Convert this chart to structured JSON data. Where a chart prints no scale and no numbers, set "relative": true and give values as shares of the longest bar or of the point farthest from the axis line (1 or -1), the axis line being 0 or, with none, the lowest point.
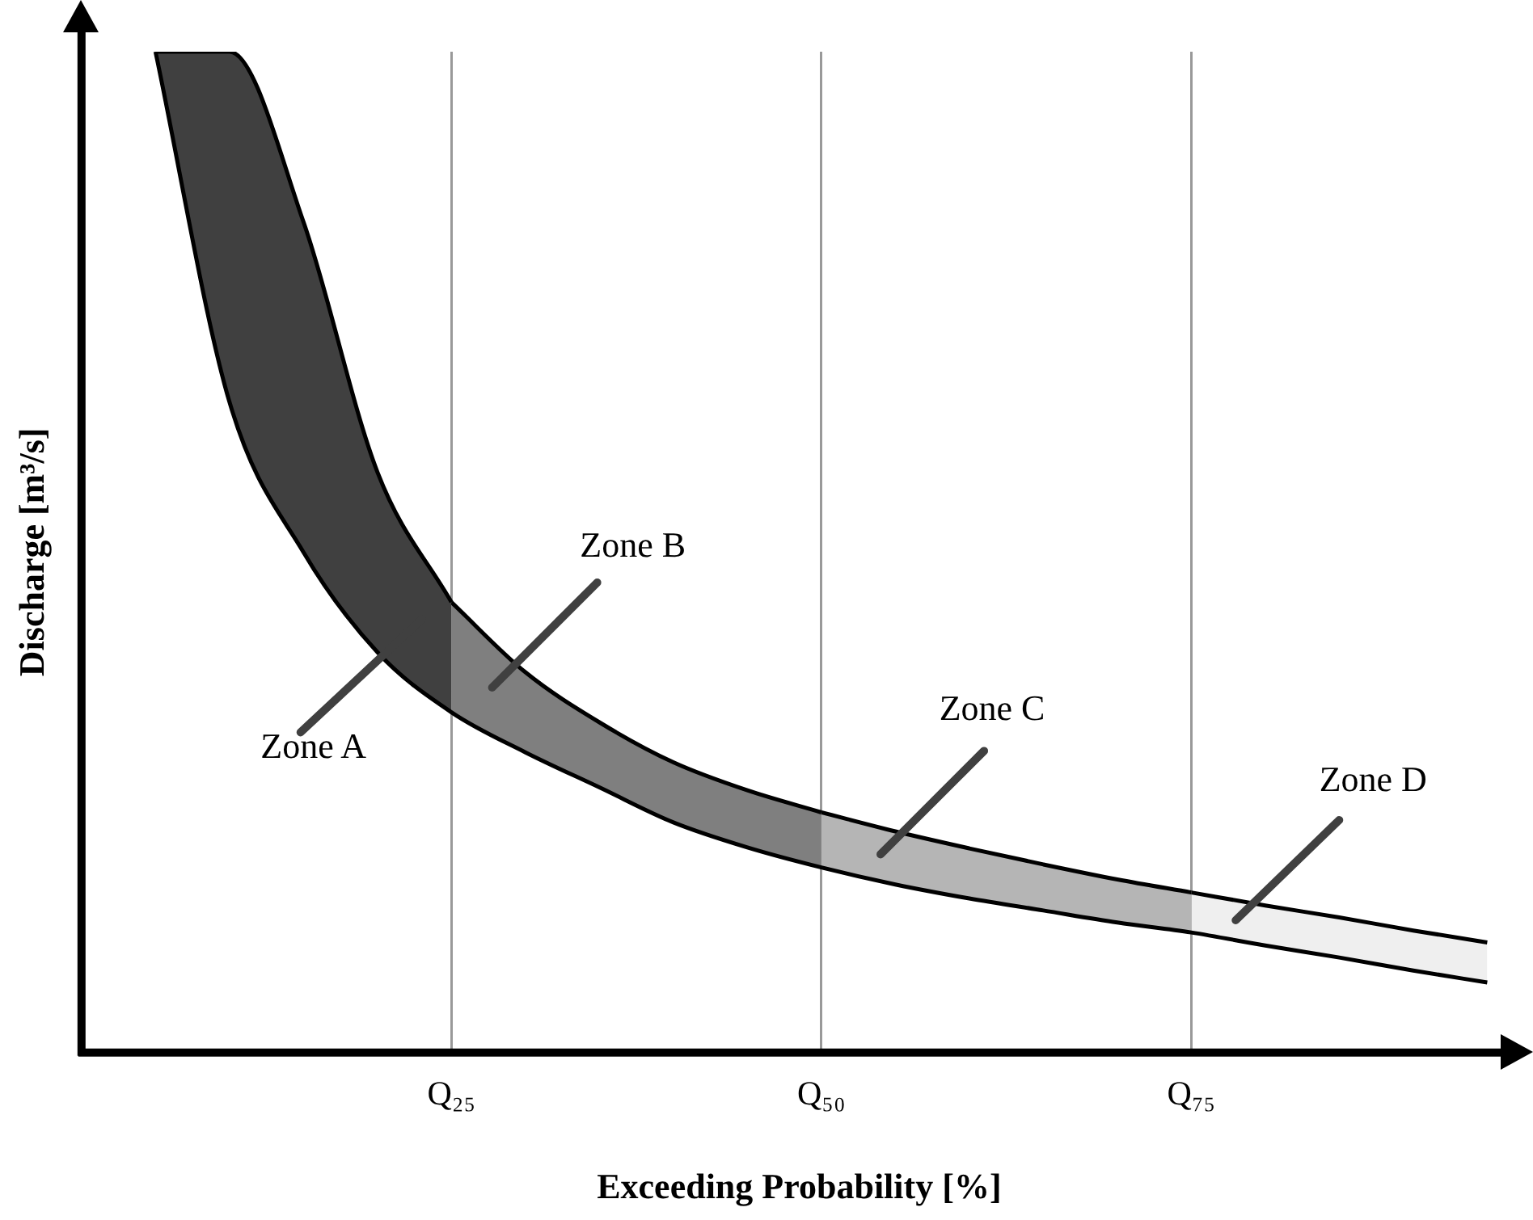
{
  "chart_data": {
    "type": "area",
    "relative": true,
    "xlabel": "Exceeding Probability [%]",
    "ylabel": "Discharge [m³/s]",
    "categories": [
      null,
      null,
      null,
      null,
      null,
      "Q₂₅",
      null,
      null,
      null,
      null,
      "Q₅₀",
      null,
      null,
      null,
      null,
      "Q₇₅",
      null,
      null,
      null,
      null
    ],
    "grid": "x",
    "legend": false,
    "series": [
      {
        "type": "line",
        "color": "#000000",
        "values": [
          null,
          1,
          0.65,
          0.5,
          0.4,
          0.34,
          0.3,
          0.265,
          0.23,
          0.205,
          0.185,
          0.168,
          0.154,
          0.142,
          0.13,
          0.12,
          0.107,
          0.095,
          0.082,
          0.07
        ]
      },
      {
        "color": "#404040",
        "values": [
          null,
          1,
          1,
          0.83,
          0.58,
          0.45,
          null,
          null,
          null,
          null,
          null,
          null,
          null,
          null,
          null,
          null,
          null,
          null,
          null,
          null
        ]
      },
      {
        "color": "#7f7f7f",
        "values": [
          null,
          null,
          null,
          null,
          null,
          0.45,
          0.38,
          0.33,
          0.29,
          0.262,
          0.24,
          null,
          null,
          null,
          null,
          null,
          null,
          null,
          null,
          null
        ]
      },
      {
        "color": "#b5b5b5",
        "values": [
          null,
          null,
          null,
          null,
          null,
          null,
          null,
          null,
          null,
          null,
          0.24,
          0.221,
          0.204,
          0.188,
          0.173,
          0.16,
          null,
          null,
          null,
          null
        ]
      },
      {
        "color": "#efefef",
        "values": [
          null,
          null,
          null,
          null,
          null,
          null,
          null,
          null,
          null,
          null,
          null,
          null,
          null,
          null,
          null,
          0.16,
          0.147,
          0.135,
          0.122,
          0.11
        ]
      }
    ],
    "annotations": [
      "Zone A",
      "Zone B",
      "Zone C",
      "Zone D"
    ]
  }
}
